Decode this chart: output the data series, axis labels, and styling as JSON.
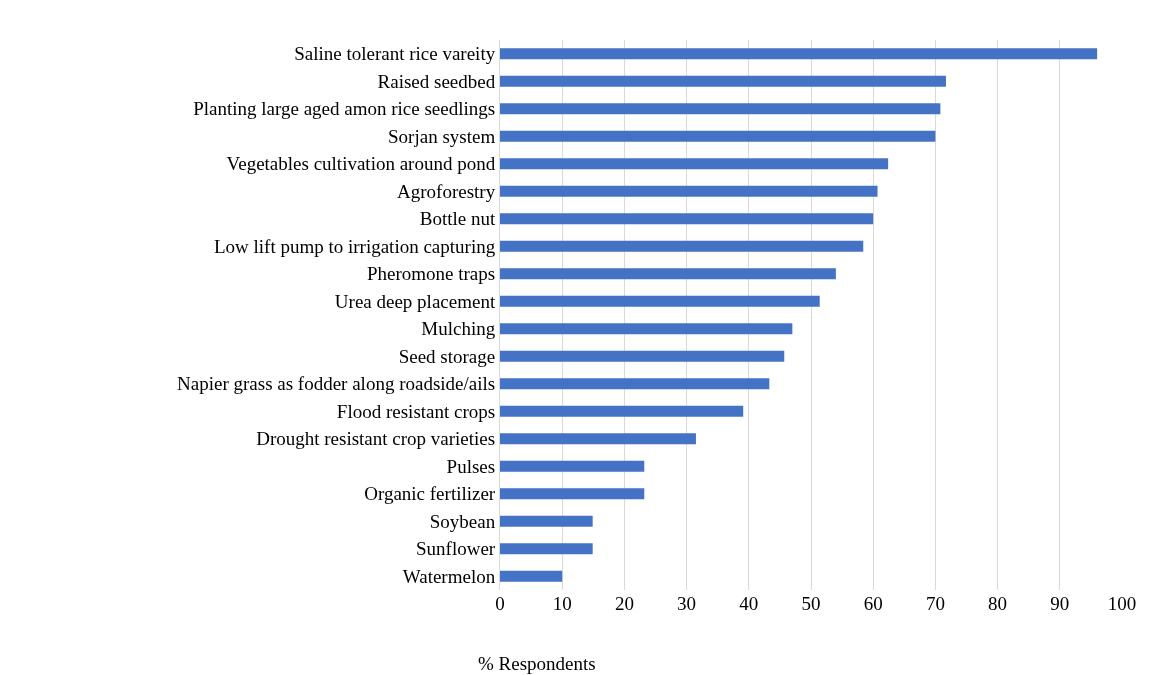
{
  "chart_data": {
    "type": "bar",
    "orientation": "horizontal",
    "xlabel": "% Respondents",
    "categories": [
      "Saline tolerant rice vareity",
      "Raised seedbed",
      "Planting large aged amon rice seedlings",
      "Sorjan system",
      "Vegetables cultivation around pond",
      "Agroforestry",
      "Bottle nut",
      "Low lift pump to irrigation capturing",
      "Pheromone traps",
      "Urea deep placement",
      "Mulching",
      "Seed storage",
      "Napier grass as fodder along roadside/ails",
      "Flood resistant crops",
      "Drought resistant crop varieties",
      "Pulses",
      "Organic fertilizer",
      "Soybean",
      "Sunflower",
      "Watermelon"
    ],
    "values": [
      96,
      71.7,
      70.8,
      70,
      62.4,
      60.7,
      60,
      58.4,
      54,
      51.4,
      47,
      45.7,
      43.3,
      39.1,
      31.5,
      23.2,
      23.2,
      14.9,
      14.9,
      10
    ],
    "color": "#4472c4",
    "xlim": [
      0,
      100
    ],
    "xticks": [
      0,
      10,
      20,
      30,
      40,
      50,
      60,
      70,
      80,
      90,
      100
    ],
    "grid": "x"
  }
}
